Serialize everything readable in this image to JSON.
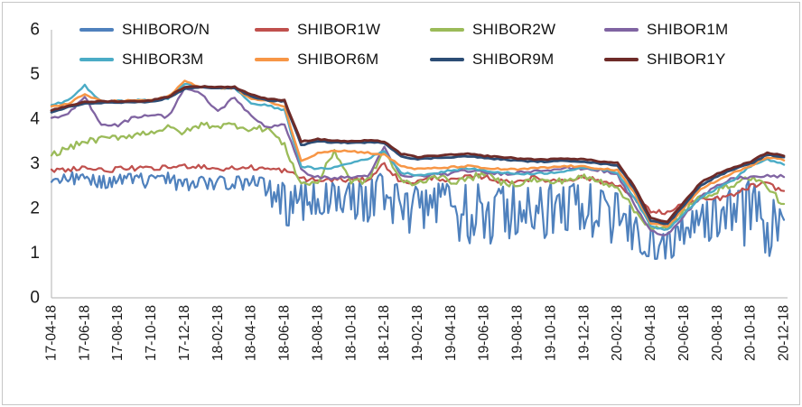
{
  "page": {
    "background": "#ffffff",
    "frame_border_color": "#c6c6c6"
  },
  "chart_data": {
    "type": "line",
    "title": "",
    "xlabel": "",
    "ylabel": "",
    "grid": false,
    "legend_position": "top",
    "axis_color": "#bfbfbf",
    "text_color": "#1a1a1a",
    "ylim": [
      0,
      6
    ],
    "y_ticks": [
      0,
      1,
      2,
      3,
      4,
      5,
      6
    ],
    "x_tick_labels": [
      "17-04-18",
      "17-06-18",
      "17-08-18",
      "17-10-18",
      "17-12-18",
      "18-02-18",
      "18-04-18",
      "18-06-18",
      "18-08-18",
      "18-10-18",
      "18-12-18",
      "19-02-18",
      "19-04-18",
      "19-06-18",
      "19-08-18",
      "19-10-18",
      "19-12-18",
      "20-02-18",
      "20-04-18",
      "20-06-18",
      "20-08-18",
      "20-10-18",
      "20-12-18"
    ],
    "sampling": "monthly samples from 17-04-18 to 20-12-18 (45 points per series), values in percent",
    "series": [
      {
        "name": "SHIBORO/N",
        "color": "#4F81BD",
        "volatility": 0.06,
        "values": [
          2.65,
          2.8,
          2.85,
          2.7,
          2.78,
          2.76,
          2.74,
          2.78,
          2.68,
          2.74,
          2.7,
          2.72,
          2.74,
          2.68,
          2.58,
          2.55,
          2.58,
          2.6,
          2.55,
          2.58,
          2.8,
          2.5,
          2.52,
          2.6,
          2.55,
          2.58,
          2.5,
          2.52,
          2.55,
          2.6,
          2.55,
          2.58,
          2.6,
          2.45,
          2.35,
          2.0,
          1.55,
          1.45,
          1.9,
          2.1,
          2.3,
          2.45,
          2.6,
          2.35,
          1.95
        ],
        "dip_values": [
          2.45,
          2.55,
          2.5,
          2.4,
          2.5,
          2.48,
          2.45,
          2.5,
          2.35,
          2.45,
          2.4,
          2.42,
          2.45,
          2.2,
          1.45,
          1.6,
          1.8,
          1.7,
          1.6,
          1.55,
          1.9,
          1.25,
          1.4,
          1.6,
          1.3,
          1.2,
          1.05,
          1.3,
          1.25,
          1.45,
          1.2,
          1.4,
          1.5,
          1.2,
          1.3,
          1.0,
          0.85,
          0.8,
          1.05,
          1.15,
          1.25,
          1.35,
          1.05,
          0.68,
          1.35
        ]
      },
      {
        "name": "SHIBOR1W",
        "color": "#C0504D",
        "volatility": 0.055,
        "values": [
          2.85,
          2.88,
          2.92,
          2.85,
          2.88,
          2.9,
          2.88,
          2.92,
          2.95,
          2.95,
          2.88,
          2.9,
          2.92,
          2.88,
          2.85,
          2.68,
          2.62,
          2.65,
          2.63,
          2.65,
          3.0,
          2.58,
          2.6,
          2.7,
          2.62,
          2.7,
          2.72,
          2.6,
          2.62,
          2.68,
          2.62,
          2.65,
          2.7,
          2.6,
          2.55,
          2.2,
          1.95,
          1.9,
          2.1,
          2.18,
          2.22,
          2.3,
          2.5,
          2.55,
          2.38
        ]
      },
      {
        "name": "SHIBOR2W",
        "color": "#9BBB59",
        "volatility": 0.07,
        "values": [
          3.2,
          3.35,
          3.5,
          3.55,
          3.6,
          3.65,
          3.72,
          3.8,
          3.7,
          3.88,
          3.85,
          3.87,
          3.78,
          3.8,
          3.4,
          2.55,
          2.58,
          3.3,
          2.6,
          2.62,
          3.3,
          2.6,
          2.55,
          2.75,
          2.6,
          2.65,
          2.8,
          2.58,
          2.55,
          2.65,
          2.58,
          2.65,
          2.7,
          2.6,
          2.5,
          1.95,
          1.58,
          1.52,
          1.95,
          2.25,
          2.4,
          2.55,
          2.7,
          2.5,
          2.05
        ]
      },
      {
        "name": "SHIBOR1M",
        "color": "#8064A2",
        "volatility": 0.035,
        "values": [
          4.0,
          4.1,
          4.5,
          3.88,
          3.87,
          4.05,
          4.1,
          4.05,
          4.7,
          4.55,
          4.17,
          4.5,
          4.05,
          3.82,
          3.9,
          2.85,
          2.7,
          2.68,
          2.7,
          2.73,
          3.35,
          2.72,
          2.72,
          2.76,
          2.78,
          2.85,
          2.8,
          2.78,
          2.8,
          2.85,
          2.88,
          2.9,
          2.9,
          2.85,
          2.75,
          2.1,
          1.48,
          1.42,
          1.85,
          2.25,
          2.5,
          2.68,
          2.7,
          2.72,
          2.72
        ]
      },
      {
        "name": "SHIBOR3M",
        "color": "#4BACC6",
        "volatility": 0.022,
        "values": [
          4.3,
          4.42,
          4.75,
          4.38,
          4.4,
          4.42,
          4.42,
          4.46,
          4.8,
          4.72,
          4.7,
          4.7,
          4.35,
          4.3,
          4.2,
          2.95,
          2.88,
          2.92,
          3.02,
          3.12,
          3.28,
          2.8,
          2.75,
          2.78,
          2.85,
          2.9,
          2.85,
          2.8,
          2.78,
          2.78,
          2.8,
          2.85,
          2.9,
          2.88,
          2.8,
          2.25,
          1.6,
          1.52,
          1.9,
          2.25,
          2.45,
          2.65,
          2.95,
          3.1,
          2.98
        ]
      },
      {
        "name": "SHIBOR6M",
        "color": "#F79646",
        "volatility": 0.02,
        "values": [
          4.27,
          4.35,
          4.55,
          4.4,
          4.4,
          4.42,
          4.42,
          4.5,
          4.85,
          4.72,
          4.7,
          4.7,
          4.45,
          4.4,
          4.28,
          3.05,
          3.25,
          3.3,
          3.28,
          3.25,
          3.2,
          2.95,
          2.88,
          2.9,
          2.92,
          2.95,
          2.9,
          2.88,
          2.87,
          2.9,
          2.92,
          2.95,
          2.93,
          2.9,
          2.85,
          2.35,
          1.68,
          1.6,
          2.0,
          2.45,
          2.62,
          2.8,
          2.95,
          3.15,
          3.08
        ]
      },
      {
        "name": "SHIBOR9M",
        "color": "#2C4D75",
        "volatility": 0.012,
        "values": [
          4.15,
          4.27,
          4.34,
          4.37,
          4.37,
          4.37,
          4.39,
          4.47,
          4.68,
          4.71,
          4.7,
          4.7,
          4.5,
          4.42,
          4.4,
          3.42,
          3.5,
          3.48,
          3.47,
          3.48,
          3.47,
          3.17,
          3.1,
          3.13,
          3.15,
          3.17,
          3.13,
          3.1,
          3.07,
          3.05,
          3.05,
          3.07,
          3.05,
          3.0,
          2.97,
          2.45,
          1.73,
          1.65,
          2.08,
          2.52,
          2.72,
          2.88,
          3.0,
          3.2,
          3.15
        ]
      },
      {
        "name": "SHIBOR1Y",
        "color": "#6E2B28",
        "volatility": 0.012,
        "values": [
          4.2,
          4.3,
          4.38,
          4.4,
          4.4,
          4.4,
          4.42,
          4.5,
          4.72,
          4.73,
          4.72,
          4.72,
          4.55,
          4.45,
          4.42,
          3.5,
          3.55,
          3.52,
          3.5,
          3.52,
          3.5,
          3.22,
          3.15,
          3.18,
          3.2,
          3.22,
          3.18,
          3.15,
          3.12,
          3.1,
          3.1,
          3.12,
          3.1,
          3.05,
          3.02,
          2.5,
          1.78,
          1.7,
          2.15,
          2.58,
          2.78,
          2.92,
          3.05,
          3.25,
          3.18
        ]
      }
    ]
  }
}
